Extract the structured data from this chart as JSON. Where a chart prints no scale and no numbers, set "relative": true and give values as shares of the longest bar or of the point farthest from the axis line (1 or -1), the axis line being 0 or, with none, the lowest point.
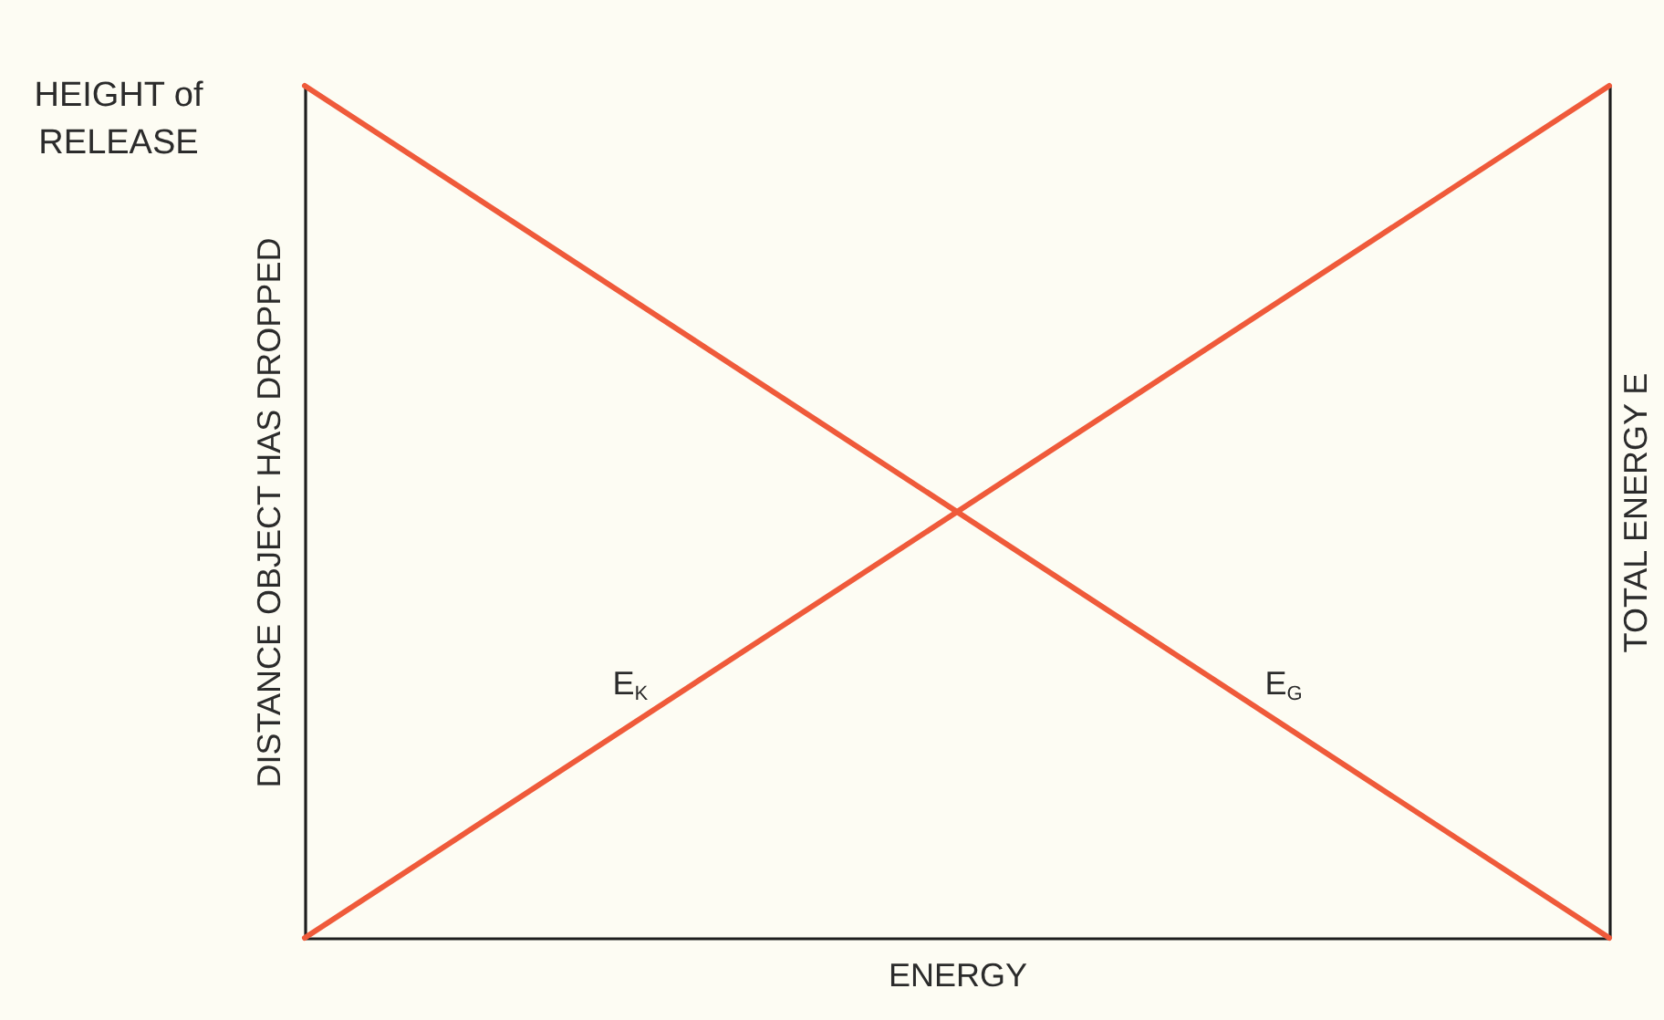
{
  "chart_data": {
    "type": "line",
    "relative": true,
    "xlabel": "ENERGY",
    "ylabel": "DISTANCE OBJECT HAS DROPPED",
    "y2label": "TOTAL ENERGY E",
    "categories": [
      null,
      null
    ],
    "series": [
      {
        "name": "E$_{K}$",
        "color": "#ef5a3a",
        "values": [
          0,
          1
        ]
      },
      {
        "name": "E$_{G}$",
        "color": "#ef5a3a",
        "values": [
          1,
          0
        ]
      }
    ],
    "annotations": [
      "HEIGHT of RELEASE"
    ],
    "legend": false
  }
}
